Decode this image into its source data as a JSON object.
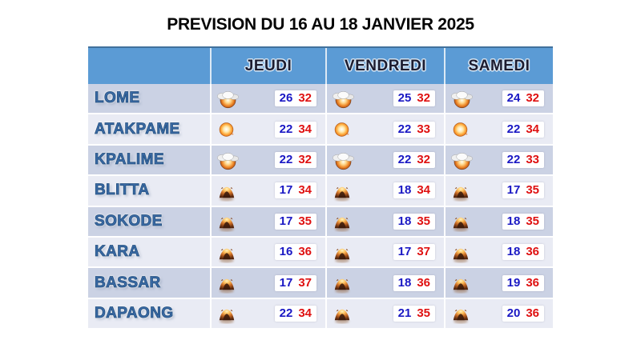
{
  "title": "PREVISION DU 16 AU 18 JANVIER 2025",
  "colors": {
    "header_bg": "#5B9BD5",
    "header_top_border": "#41719C",
    "row_dark": "#CBD2E4",
    "row_light": "#E9EBF4",
    "city_text": "#3A6AA5",
    "temp_min": "#1A18C4",
    "temp_max": "#DF1111",
    "title_text": "#050505"
  },
  "table": {
    "day_headers": [
      "JEUDI",
      "VENDREDI",
      "SAMEDI"
    ],
    "rows": [
      {
        "city": "LOME",
        "icon": "sun-cloud-icon",
        "temps": [
          {
            "min": "26",
            "max": "32"
          },
          {
            "min": "25",
            "max": "32"
          },
          {
            "min": "24",
            "max": "32"
          }
        ]
      },
      {
        "city": "ATAKPAME",
        "icon": "sun-icon",
        "temps": [
          {
            "min": "22",
            "max": "34"
          },
          {
            "min": "22",
            "max": "33"
          },
          {
            "min": "22",
            "max": "34"
          }
        ]
      },
      {
        "city": "KPALIME",
        "icon": "sun-cloud-icon",
        "temps": [
          {
            "min": "22",
            "max": "32"
          },
          {
            "min": "22",
            "max": "32"
          },
          {
            "min": "22",
            "max": "33"
          }
        ]
      },
      {
        "city": "BLITTA",
        "icon": "dust-icon",
        "temps": [
          {
            "min": "17",
            "max": "34"
          },
          {
            "min": "18",
            "max": "34"
          },
          {
            "min": "17",
            "max": "35"
          }
        ]
      },
      {
        "city": "SOKODE",
        "icon": "dust-icon",
        "temps": [
          {
            "min": "17",
            "max": "35"
          },
          {
            "min": "18",
            "max": "35"
          },
          {
            "min": "18",
            "max": "35"
          }
        ]
      },
      {
        "city": "KARA",
        "icon": "dust-icon",
        "temps": [
          {
            "min": "16",
            "max": "36"
          },
          {
            "min": "17",
            "max": "37"
          },
          {
            "min": "18",
            "max": "36"
          }
        ]
      },
      {
        "city": "BASSAR",
        "icon": "dust-icon",
        "temps": [
          {
            "min": "17",
            "max": "37"
          },
          {
            "min": "18",
            "max": "36"
          },
          {
            "min": "19",
            "max": "36"
          }
        ]
      },
      {
        "city": "DAPAONG",
        "icon": "dust-icon",
        "temps": [
          {
            "min": "22",
            "max": "34"
          },
          {
            "min": "21",
            "max": "35"
          },
          {
            "min": "20",
            "max": "36"
          }
        ]
      }
    ]
  }
}
